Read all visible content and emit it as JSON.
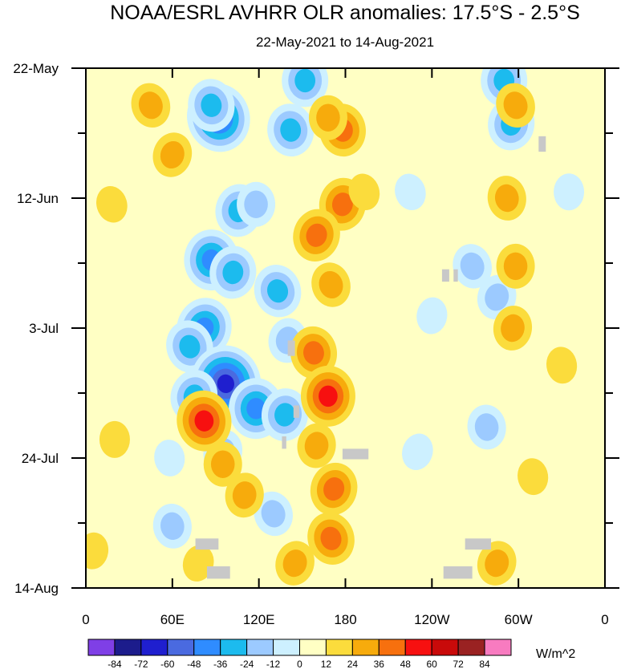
{
  "chart_data": {
    "type": "heatmap",
    "title": "NOAA/ESRL AVHRR OLR anomalies: 17.5°S - 2.5°S",
    "subtitle": "22-May-2021 to 14-Aug-2021",
    "x_axis": {
      "range_deg_east": [
        0,
        360
      ],
      "tick_positions_deg_east": [
        0,
        60,
        120,
        180,
        240,
        300,
        360
      ],
      "tick_labels": [
        "0",
        "60E",
        "120E",
        "180",
        "120W",
        "60W",
        "0"
      ]
    },
    "y_axis": {
      "range_days_since_start": [
        0,
        84
      ],
      "tick_positions_days": [
        0,
        21,
        42,
        63,
        84
      ],
      "tick_labels": [
        "22-May",
        "12-Jun",
        "3-Jul",
        "24-Jul",
        "14-Aug"
      ],
      "direction": "time increases downward"
    },
    "colorbar": {
      "units": "W/m^2",
      "levels": [
        -84,
        -72,
        -60,
        -48,
        -36,
        -24,
        -12,
        0,
        12,
        24,
        36,
        48,
        60,
        72,
        84
      ],
      "colors": [
        "#7f3fe6",
        "#1c1c8c",
        "#1f1fcf",
        "#4a6ae0",
        "#2f8cff",
        "#1cbbee",
        "#9ccaff",
        "#cdf0ff",
        "#ffffc4",
        "#fbdc3c",
        "#f7ab0c",
        "#f7700e",
        "#f71010",
        "#c90a0a",
        "#9a2222",
        "#f87bc0"
      ]
    },
    "missing_color": "#c8c8c8",
    "blobs": [
      {
        "lon": 92,
        "day": 8,
        "value": -60
      },
      {
        "lon": 87,
        "day": 6,
        "value": -36
      },
      {
        "lon": 87,
        "day": 31,
        "value": -48
      },
      {
        "lon": 102,
        "day": 33,
        "value": -36
      },
      {
        "lon": 82,
        "day": 42,
        "value": -48
      },
      {
        "lon": 72,
        "day": 45,
        "value": -36
      },
      {
        "lon": 97,
        "day": 51,
        "value": -72
      },
      {
        "lon": 118,
        "day": 55,
        "value": -48
      },
      {
        "lon": 138,
        "day": 56,
        "value": -36
      },
      {
        "lon": 75,
        "day": 53,
        "value": -36
      },
      {
        "lon": 133,
        "day": 36,
        "value": -36
      },
      {
        "lon": 142,
        "day": 10,
        "value": -36
      },
      {
        "lon": 152,
        "day": 2,
        "value": -36
      },
      {
        "lon": 106,
        "day": 23,
        "value": -36
      },
      {
        "lon": 95,
        "day": 62,
        "value": -24
      },
      {
        "lon": 130,
        "day": 72,
        "value": -24
      },
      {
        "lon": 60,
        "day": 74,
        "value": -24
      },
      {
        "lon": 290,
        "day": 2,
        "value": -36
      },
      {
        "lon": 295,
        "day": 9,
        "value": -36
      },
      {
        "lon": 285,
        "day": 37,
        "value": -24
      },
      {
        "lon": 268,
        "day": 32,
        "value": -24
      },
      {
        "lon": 278,
        "day": 58,
        "value": -24
      },
      {
        "lon": 335,
        "day": 20,
        "value": -12
      },
      {
        "lon": 240,
        "day": 40,
        "value": -12
      },
      {
        "lon": 230,
        "day": 62,
        "value": -12
      },
      {
        "lon": 225,
        "day": 20,
        "value": -12
      },
      {
        "lon": 58,
        "day": 63,
        "value": -12
      },
      {
        "lon": 118,
        "day": 22,
        "value": -24
      },
      {
        "lon": 140,
        "day": 44,
        "value": -24
      },
      {
        "lon": 60,
        "day": 14,
        "value": 24
      },
      {
        "lon": 45,
        "day": 6,
        "value": 24
      },
      {
        "lon": 178,
        "day": 10,
        "value": 36
      },
      {
        "lon": 168,
        "day": 8,
        "value": 24
      },
      {
        "lon": 178,
        "day": 22,
        "value": 36
      },
      {
        "lon": 160,
        "day": 27,
        "value": 36
      },
      {
        "lon": 170,
        "day": 35,
        "value": 24
      },
      {
        "lon": 158,
        "day": 46,
        "value": 36
      },
      {
        "lon": 168,
        "day": 53,
        "value": 48
      },
      {
        "lon": 160,
        "day": 61,
        "value": 24
      },
      {
        "lon": 172,
        "day": 68,
        "value": 36
      },
      {
        "lon": 170,
        "day": 76,
        "value": 36
      },
      {
        "lon": 82,
        "day": 57,
        "value": 48
      },
      {
        "lon": 95,
        "day": 64,
        "value": 24
      },
      {
        "lon": 110,
        "day": 69,
        "value": 24
      },
      {
        "lon": 145,
        "day": 80,
        "value": 24
      },
      {
        "lon": 298,
        "day": 6,
        "value": 24
      },
      {
        "lon": 292,
        "day": 21,
        "value": 24
      },
      {
        "lon": 298,
        "day": 32,
        "value": 24
      },
      {
        "lon": 296,
        "day": 42,
        "value": 24
      },
      {
        "lon": 285,
        "day": 80,
        "value": 24
      },
      {
        "lon": 18,
        "day": 22,
        "value": 12
      },
      {
        "lon": 330,
        "day": 48,
        "value": 12
      },
      {
        "lon": 20,
        "day": 60,
        "value": 12
      },
      {
        "lon": 5,
        "day": 78,
        "value": 12
      },
      {
        "lon": 78,
        "day": 80,
        "value": 12
      },
      {
        "lon": 193,
        "day": 20,
        "value": 12
      },
      {
        "lon": 310,
        "day": 66,
        "value": 12
      }
    ],
    "missing_patches": [
      {
        "lon_start": 84,
        "lon_end": 100,
        "day_start": 80.5,
        "day_end": 82.5
      },
      {
        "lon_start": 76,
        "lon_end": 92,
        "day_start": 76.0,
        "day_end": 77.8
      },
      {
        "lon_start": 178,
        "lon_end": 196,
        "day_start": 61.5,
        "day_end": 63.2
      },
      {
        "lon_start": 263,
        "lon_end": 281,
        "day_start": 76.0,
        "day_end": 77.8
      },
      {
        "lon_start": 248,
        "lon_end": 268,
        "day_start": 80.5,
        "day_end": 82.5
      },
      {
        "lon_start": 247,
        "lon_end": 252,
        "day_start": 32.5,
        "day_end": 34.5
      },
      {
        "lon_start": 255,
        "lon_end": 258,
        "day_start": 32.5,
        "day_end": 34.5
      },
      {
        "lon_start": 314,
        "lon_end": 319,
        "day_start": 11.0,
        "day_end": 13.5
      },
      {
        "lon_start": 140,
        "lon_end": 145,
        "day_start": 44.0,
        "day_end": 46.5
      },
      {
        "lon_start": 136,
        "lon_end": 139,
        "day_start": 59.5,
        "day_end": 61.5
      },
      {
        "lon_start": 144,
        "lon_end": 148,
        "day_start": 54.5,
        "day_end": 56.5
      }
    ]
  }
}
